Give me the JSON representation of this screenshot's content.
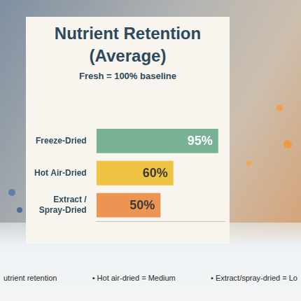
{
  "chart_data": {
    "type": "bar",
    "orientation": "horizontal",
    "title": "Nutrient Retention (Average)",
    "subtitle": "Fresh = 100% baseline",
    "categories": [
      "Freeze-Dried",
      "Hot Air-Dried",
      "Extract / Spray-Dried"
    ],
    "values": [
      95,
      60,
      50
    ],
    "value_labels": [
      "95%",
      "60%",
      "50%"
    ],
    "colors": [
      "#78b295",
      "#f0c443",
      "#ec9452"
    ],
    "xlim": [
      0,
      100
    ],
    "grid": false,
    "data_labels": true,
    "tick_labels": "y",
    "annotations": [
      "utrient retention",
      "• Hot air-dried = Medium",
      "• Extract/spray-dried = Lo"
    ]
  }
}
